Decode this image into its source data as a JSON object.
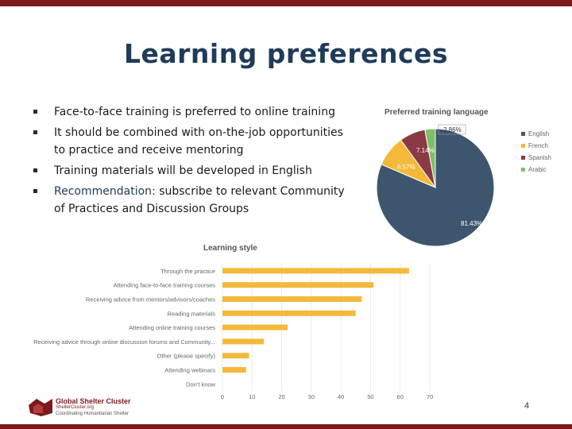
{
  "slide": {
    "title": "Learning preferences",
    "bullets": [
      "Face-to-face training is preferred to online training",
      "It should be combined with on-the-job opportunities to practice and receive mentoring",
      "Training materials will be developed in English"
    ],
    "recommendation_label": "Recommendation:",
    "recommendation_text": " subscribe to relevant Community of Practices and Discussion Groups",
    "page_number": "4"
  },
  "footer": {
    "org_name": "Global Shelter Cluster",
    "org_site": "ShelterCluster.org",
    "org_tagline": "Coordinating Humanitarian Shelter"
  },
  "chart_data": [
    {
      "type": "pie",
      "title": "Preferred training language",
      "slices": [
        {
          "label": "English",
          "value": 81.43,
          "display": "81.43%",
          "color": "#3d566e"
        },
        {
          "label": "French",
          "value": 8.57,
          "display": "8.57%",
          "color": "#f4b93a"
        },
        {
          "label": "Spanish",
          "value": 7.14,
          "display": "7.14%",
          "color": "#8b3a45"
        },
        {
          "label": "Arabic",
          "value": 2.86,
          "display": "2.86%",
          "color": "#7fbf6a"
        }
      ],
      "legend_position": "right"
    },
    {
      "type": "bar",
      "orientation": "horizontal",
      "title": "Learning style",
      "categories": [
        "Through the practice",
        "Attending face-to-face training courses",
        "Receiving advice from mentors/advisors/coaches",
        "Reading materials",
        "Attending online training courses",
        "Receiving advice through online discussion forums and Community...",
        "Other (please specify)",
        "Attending webinars",
        "Don't know"
      ],
      "values": [
        63,
        51,
        47,
        45,
        22,
        14,
        9,
        8,
        0
      ],
      "xlim": [
        0,
        70
      ],
      "xticks": [
        "0",
        "10",
        "20",
        "30",
        "40",
        "50",
        "60",
        "70"
      ],
      "color": "#f4b93a",
      "grid": true
    }
  ]
}
